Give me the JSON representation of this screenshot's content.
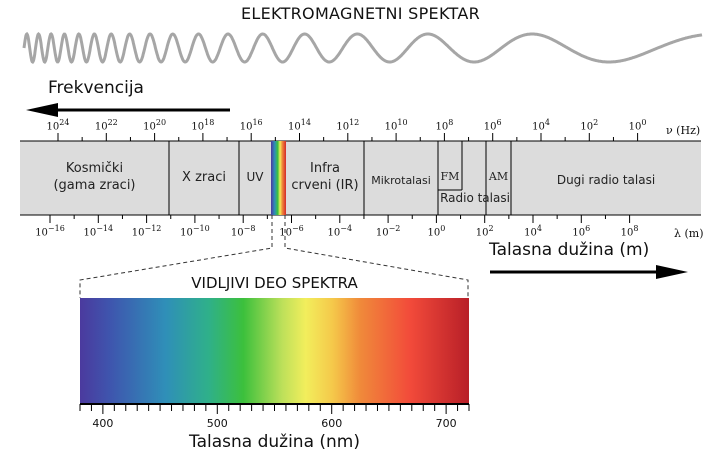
{
  "title": "ELEKTROMAGNETNI SPEKTAR",
  "frequency_label": "Frekvencija",
  "wavelength_label": "Talasna dužina (m)",
  "frequency_unit": "ν (Hz)",
  "wavelength_unit": "λ (m)",
  "frequency_ticks": [
    {
      "base": "10",
      "exp": "24"
    },
    {
      "base": "10",
      "exp": "22"
    },
    {
      "base": "10",
      "exp": "20"
    },
    {
      "base": "10",
      "exp": "18"
    },
    {
      "base": "10",
      "exp": "16"
    },
    {
      "base": "10",
      "exp": "14"
    },
    {
      "base": "10",
      "exp": "12"
    },
    {
      "base": "10",
      "exp": "10"
    },
    {
      "base": "10",
      "exp": "8"
    },
    {
      "base": "10",
      "exp": "6"
    },
    {
      "base": "10",
      "exp": "4"
    },
    {
      "base": "10",
      "exp": "2"
    },
    {
      "base": "10",
      "exp": "0"
    }
  ],
  "wavelength_ticks": [
    {
      "base": "10",
      "exp": "−16"
    },
    {
      "base": "10",
      "exp": "−14"
    },
    {
      "base": "10",
      "exp": "−12"
    },
    {
      "base": "10",
      "exp": "−10"
    },
    {
      "base": "10",
      "exp": "−8"
    },
    {
      "base": "10",
      "exp": "−6"
    },
    {
      "base": "10",
      "exp": "−4"
    },
    {
      "base": "10",
      "exp": "−2"
    },
    {
      "base": "10",
      "exp": "0"
    },
    {
      "base": "10",
      "exp": "2"
    },
    {
      "base": "10",
      "exp": "4"
    },
    {
      "base": "10",
      "exp": "6"
    },
    {
      "base": "10",
      "exp": "8"
    }
  ],
  "regions": {
    "gamma": [
      "Kosmički",
      "(gama zraci)"
    ],
    "xray": "X zraci",
    "uv": "UV",
    "ir": [
      "Infra",
      "crveni (IR)"
    ],
    "micro": "Mikrotalasi",
    "fm": "FM",
    "am": "AM",
    "radio": "Radio talasi",
    "longradio": "Dugi radio talasi"
  },
  "visible": {
    "title": "VIDLJIVI DEO SPEKTRA",
    "axis_label": "Talasna dužina (nm)",
    "ticks": [
      "400",
      "500",
      "600",
      "700"
    ],
    "range_nm": [
      380,
      720
    ],
    "colors": {
      "violet": "#4b3a9e",
      "blue": "#2f8fb8",
      "green": "#3cc03c",
      "yellow": "#f2ee5c",
      "orange": "#f08a3a",
      "red": "#f24a3a",
      "darkred": "#b81f28"
    }
  },
  "band_color": "#dcdcdc",
  "wave_color": "#a6a6a6"
}
